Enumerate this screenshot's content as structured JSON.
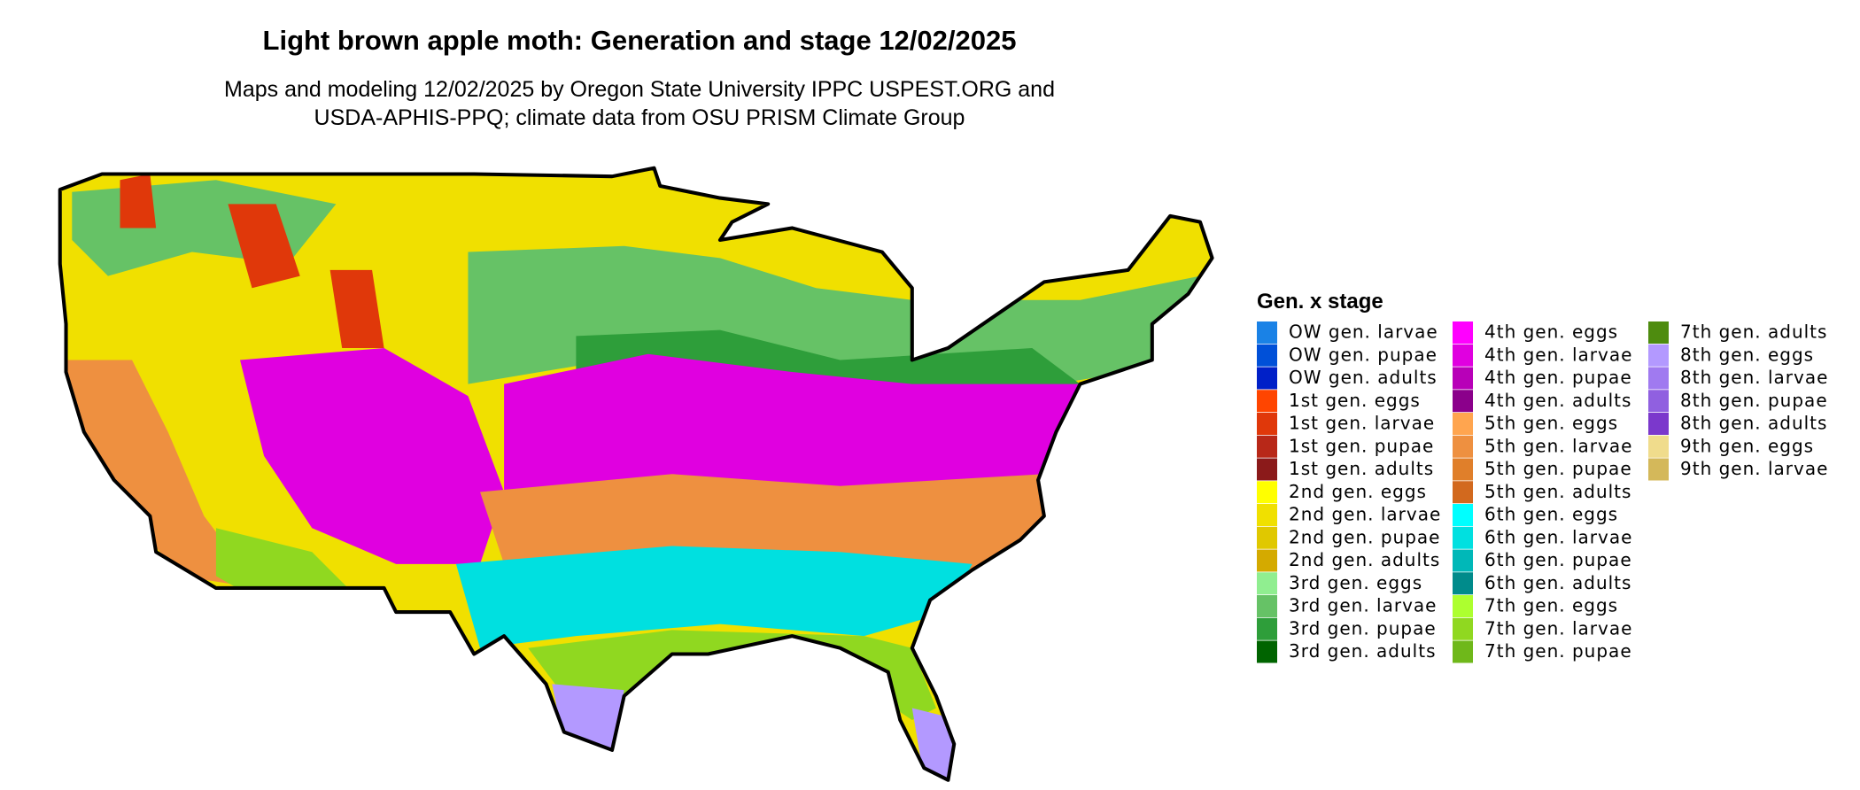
{
  "title": "Light brown apple moth: Generation and stage 12/02/2025",
  "subtitle": [
    "Maps and modeling 12/02/2025 by Oregon State University IPPC USPEST.ORG and",
    "USDA-APHIS-PPQ; climate data from OSU PRISM Climate Group"
  ],
  "legend": {
    "title": "Gen. x stage",
    "items": [
      {
        "label": "OW gen. larvae",
        "color": "#1a82e6"
      },
      {
        "label": "OW gen. pupae",
        "color": "#0050d8"
      },
      {
        "label": "OW gen. adults",
        "color": "#0020c8"
      },
      {
        "label": "1st gen. eggs",
        "color": "#ff4500"
      },
      {
        "label": "1st gen. larvae",
        "color": "#e0380a"
      },
      {
        "label": "1st gen. pupae",
        "color": "#b82818"
      },
      {
        "label": "1st gen. adults",
        "color": "#8b1a1a"
      },
      {
        "label": "2nd gen. eggs",
        "color": "#ffff00"
      },
      {
        "label": "2nd gen. larvae",
        "color": "#f0e000"
      },
      {
        "label": "2nd gen. pupae",
        "color": "#e0c800"
      },
      {
        "label": "2nd gen. adults",
        "color": "#d4aa00"
      },
      {
        "label": "3rd gen. eggs",
        "color": "#90ee90"
      },
      {
        "label": "3rd gen. larvae",
        "color": "#66c266"
      },
      {
        "label": "3rd gen. pupae",
        "color": "#2e9e3a"
      },
      {
        "label": "3rd gen. adults",
        "color": "#006400"
      },
      {
        "label": "4th gen. eggs",
        "color": "#ff00ff"
      },
      {
        "label": "4th gen. larvae",
        "color": "#e000e0"
      },
      {
        "label": "4th gen. pupae",
        "color": "#b800b8"
      },
      {
        "label": "4th gen. adults",
        "color": "#8b008b"
      },
      {
        "label": "5th gen. eggs",
        "color": "#ffa54f"
      },
      {
        "label": "5th gen. larvae",
        "color": "#ee9040"
      },
      {
        "label": "5th gen. pupae",
        "color": "#e07f2a"
      },
      {
        "label": "5th gen. adults",
        "color": "#d2691e"
      },
      {
        "label": "6th gen. eggs",
        "color": "#00ffff"
      },
      {
        "label": "6th gen. larvae",
        "color": "#00e0e0"
      },
      {
        "label": "6th gen. pupae",
        "color": "#00b8b8"
      },
      {
        "label": "6th gen. adults",
        "color": "#008b8b"
      },
      {
        "label": "7th gen. eggs",
        "color": "#adff2f"
      },
      {
        "label": "7th gen. larvae",
        "color": "#90d820"
      },
      {
        "label": "7th gen. pupae",
        "color": "#6fb81a"
      },
      {
        "label": "7th gen. adults",
        "color": "#4e8c0f"
      },
      {
        "label": "8th gen. eggs",
        "color": "#b399ff"
      },
      {
        "label": "8th gen. larvae",
        "color": "#a07af0"
      },
      {
        "label": "8th gen. pupae",
        "color": "#9060e0"
      },
      {
        "label": "8th gen. adults",
        "color": "#7b38cc"
      },
      {
        "label": "9th gen. eggs",
        "color": "#f0dc8c"
      },
      {
        "label": "9th gen. larvae",
        "color": "#d4b85a"
      }
    ]
  }
}
